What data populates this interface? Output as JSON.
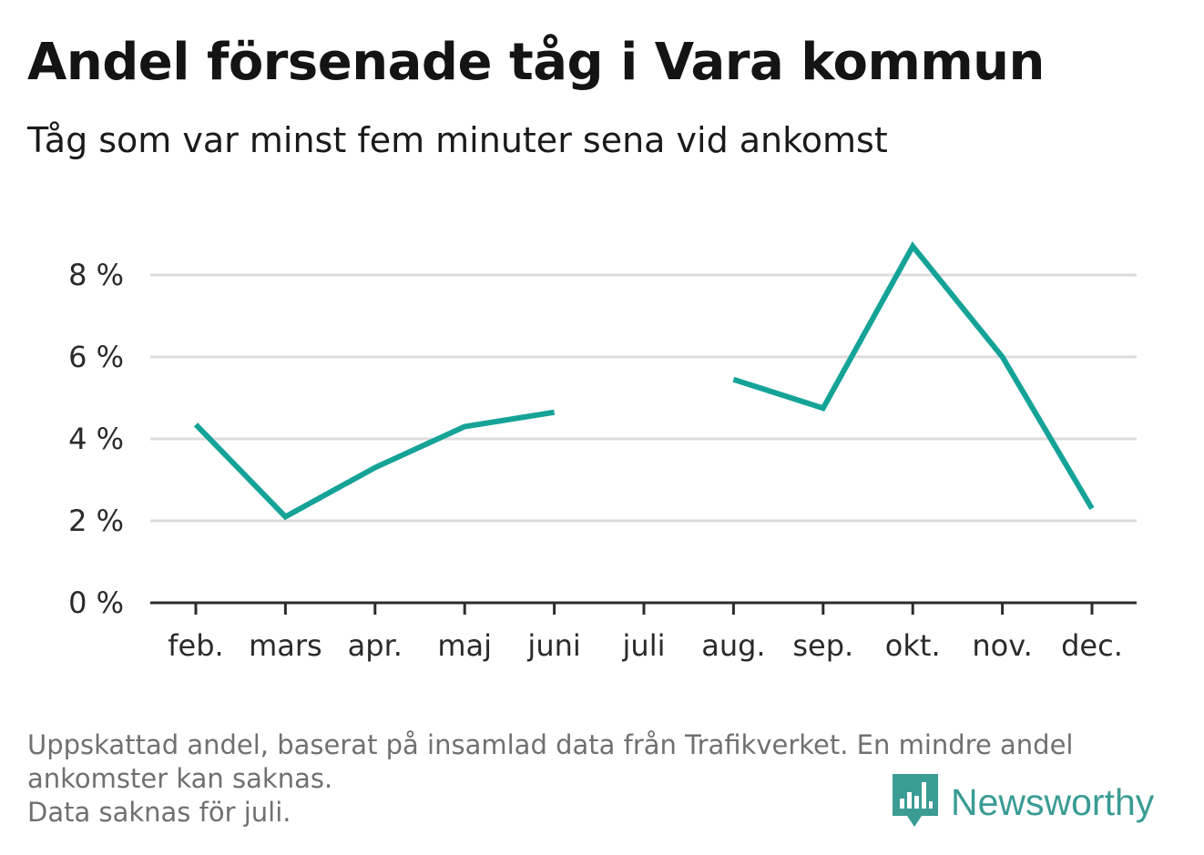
{
  "title": "Andel försenade tåg i Vara kommun",
  "subtitle": "Tåg som var minst fem minuter sena vid ankomst",
  "footnote": {
    "line1": "Uppskattad andel, baserat på insamlad data från Trafikverket. En mindre andel",
    "line2": "ankomster kan saknas.",
    "line3": "Data saknas för juli."
  },
  "brand": {
    "name": "Newsworthy",
    "icon": "newsworthy-bar-chart-icon",
    "color": "#3a9c94"
  },
  "chart_data": {
    "type": "line",
    "categories": [
      "feb.",
      "mars",
      "apr.",
      "maj",
      "juni",
      "juli",
      "aug.",
      "sep.",
      "okt.",
      "nov.",
      "dec."
    ],
    "series": [
      {
        "values": [
          4.35,
          2.1,
          3.3,
          4.3,
          4.65,
          null,
          5.45,
          4.75,
          8.7,
          6.0,
          2.3
        ],
        "color": "#15a398"
      }
    ],
    "yticks": [
      0,
      2,
      4,
      6,
      8
    ],
    "ytick_labels": [
      "0 %",
      "2 %",
      "4 %",
      "6 %",
      "8 %"
    ],
    "ylim": [
      0,
      9
    ],
    "grid": true,
    "xlabel": "",
    "ylabel": ""
  }
}
